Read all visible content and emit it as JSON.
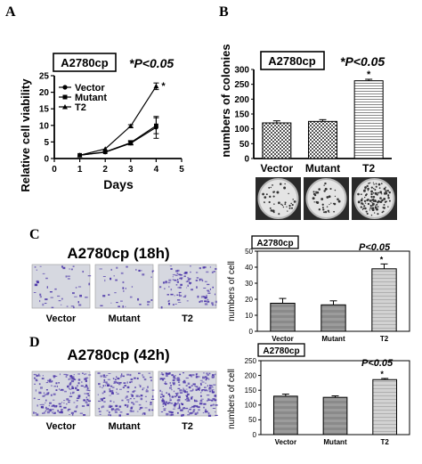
{
  "panels": [
    {
      "letter": "A"
    },
    {
      "letter": "B"
    },
    {
      "letter": "C"
    },
    {
      "letter": "D"
    }
  ],
  "colors": {
    "ink": "#000000",
    "stain": "#4b35a8",
    "well_bg": "#d6d8e0",
    "bar_gray": "#9a9a9a"
  },
  "chart_data": [
    {
      "id": "A",
      "type": "line",
      "cell_line": "A2780cp",
      "significance": "*P<0.05",
      "xlabel": "Days",
      "ylabel": "Relative cell viability",
      "xlim": [
        0,
        5
      ],
      "ylim": [
        0,
        25
      ],
      "x_ticks": [
        "0",
        "1",
        "2",
        "3",
        "4",
        "5"
      ],
      "y_ticks": [
        "0",
        "5",
        "10",
        "15",
        "20",
        "25"
      ],
      "legend": [
        "Vector",
        "Mutant",
        "T2"
      ],
      "legend_position": "top-left",
      "x": [
        1,
        2,
        3,
        4
      ],
      "series": [
        {
          "name": "Vector",
          "marker": "circle",
          "values": [
            1.0,
            1.9,
            4.6,
            9.4
          ],
          "error": [
            0.2,
            0.3,
            0.5,
            3.3
          ]
        },
        {
          "name": "Mutant",
          "marker": "square",
          "values": [
            1.0,
            2.0,
            4.8,
            9.9
          ],
          "error": [
            0.2,
            0.3,
            0.6,
            2.4
          ]
        },
        {
          "name": "T2",
          "marker": "triangle",
          "values": [
            1.0,
            2.9,
            9.8,
            21.8
          ],
          "error": [
            0.2,
            0.3,
            0.4,
            1.0
          ]
        }
      ],
      "annotations": [
        "*"
      ]
    },
    {
      "id": "B",
      "type": "bar",
      "cell_line": "A2780cp",
      "significance": "*P<0.05",
      "xlabel": "",
      "ylabel": "numbers of colonies",
      "ylim": [
        0,
        300
      ],
      "y_ticks": [
        "0",
        "50",
        "100",
        "150",
        "200",
        "250",
        "300"
      ],
      "categories": [
        "Vector",
        "Mutant",
        "T2"
      ],
      "values": [
        120,
        125,
        262
      ],
      "error": [
        7,
        6,
        5
      ],
      "patterns": [
        "checker",
        "checker",
        "hlines"
      ],
      "annotations": [
        "*"
      ],
      "images": [
        "Vector colony plate",
        "Mutant colony plate",
        "T2 colony plate"
      ]
    },
    {
      "id": "C",
      "type": "bar",
      "title": "A2780cp (18h)",
      "cell_line": "A2780cp",
      "significance": "P<0.05",
      "xlabel": "",
      "ylabel": "numbers of cell",
      "ylim": [
        0,
        50
      ],
      "y_ticks": [
        "0",
        "10",
        "20",
        "30",
        "40",
        "50"
      ],
      "categories": [
        "Vector",
        "Mutant",
        "T2"
      ],
      "values": [
        17.5,
        16.5,
        39
      ],
      "error": [
        3,
        2.5,
        3
      ],
      "annotations": [
        "*"
      ],
      "images": [
        "Vector",
        "Mutant",
        "T2"
      ],
      "stain_density": [
        0.18,
        0.15,
        0.4
      ]
    },
    {
      "id": "D",
      "type": "bar",
      "title": "A2780cp (42h)",
      "cell_line": "A2780cp",
      "significance": "P<0.05",
      "xlabel": "",
      "ylabel": "numbers of cell",
      "ylim": [
        0,
        250
      ],
      "y_ticks": [
        "0",
        "50",
        "100",
        "150",
        "200",
        "250"
      ],
      "categories": [
        "Vector",
        "Mutant",
        "T2"
      ],
      "values": [
        130,
        126,
        186
      ],
      "error": [
        7,
        5,
        4
      ],
      "annotations": [
        "*"
      ],
      "images": [
        "Vector",
        "Mutant",
        "T2"
      ],
      "stain_density": [
        0.65,
        0.6,
        0.95
      ]
    }
  ]
}
